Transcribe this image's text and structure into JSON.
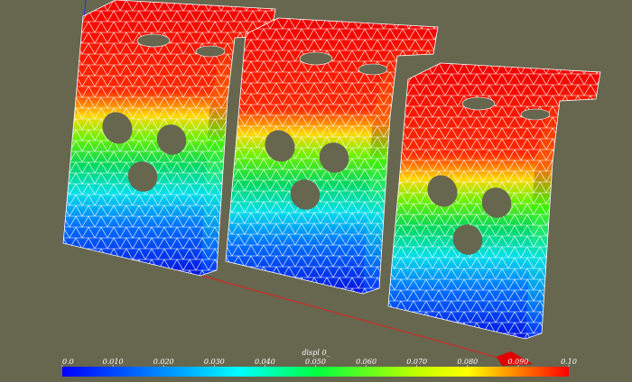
{
  "colorbar": {
    "title": "displ 0_",
    "range": [
      0,
      0.1
    ],
    "ticks": [
      {
        "value": 0,
        "label": "0.0"
      },
      {
        "value": 0.01,
        "label": "0.010"
      },
      {
        "value": 0.02,
        "label": "0.020"
      },
      {
        "value": 0.03,
        "label": "0.030"
      },
      {
        "value": 0.04,
        "label": "0.040"
      },
      {
        "value": 0.05,
        "label": "0.050"
      },
      {
        "value": 0.06,
        "label": "0.060"
      },
      {
        "value": 0.07,
        "label": "0.070"
      },
      {
        "value": 0.08,
        "label": "0.080"
      },
      {
        "value": 0.09,
        "label": "0.090"
      },
      {
        "value": 0.1,
        "label": "0.10"
      }
    ]
  }
}
